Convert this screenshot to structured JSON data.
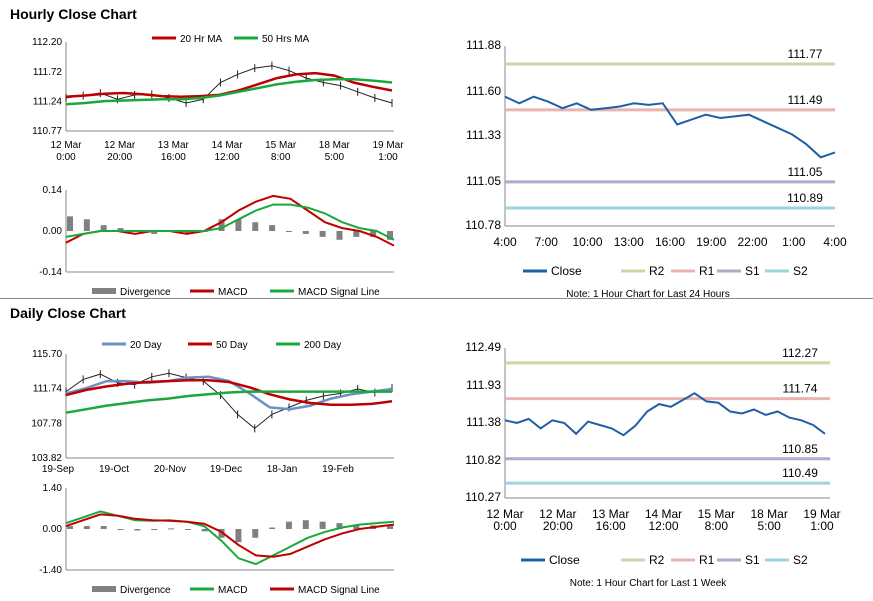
{
  "sections": {
    "hourly_title": "Hourly Close Chart",
    "daily_title": "Daily Close Chart"
  },
  "colors": {
    "close": "#1f5fa8",
    "r2": "#c5d9a0",
    "r1": "#e8b4b2",
    "s1": "#b3a7cc",
    "s2": "#9fd3e0",
    "ma_red": "#c00000",
    "ma_green": "#1aa83c",
    "ma_blue": "#6d8fc8",
    "divergence": "#808080"
  },
  "chart_data": [
    {
      "id": "hourly_price",
      "type": "line",
      "legend_position": "top",
      "x_labels": [
        "12 Mar\n0:00",
        "12 Mar\n20:00",
        "13 Mar\n16:00",
        "14 Mar\n12:00",
        "15 Mar\n8:00",
        "18 Mar\n5:00",
        "19 Mar\n1:00"
      ],
      "ylim": [
        110.77,
        112.2
      ],
      "yticks": [
        "112.20",
        "111.72",
        "111.24",
        "110.77"
      ],
      "series": [
        {
          "name": "20 Hr MA",
          "color": "#c00000",
          "values": [
            111.32,
            111.34,
            111.37,
            111.38,
            111.36,
            111.33,
            111.32,
            111.33,
            111.35,
            111.42,
            111.52,
            111.62,
            111.68,
            111.7,
            111.66,
            111.55,
            111.48,
            111.42
          ]
        },
        {
          "name": "50 Hrs MA",
          "color": "#1aa83c",
          "values": [
            111.2,
            111.22,
            111.25,
            111.26,
            111.27,
            111.28,
            111.28,
            111.3,
            111.34,
            111.4,
            111.46,
            111.52,
            111.56,
            111.59,
            111.6,
            111.6,
            111.58,
            111.55
          ]
        }
      ],
      "price": [
        111.3,
        111.34,
        111.38,
        111.28,
        111.35,
        111.36,
        111.3,
        111.22,
        111.28,
        111.55,
        111.68,
        111.78,
        111.82,
        111.74,
        111.62,
        111.55,
        111.5,
        111.4,
        111.3,
        111.22
      ]
    },
    {
      "id": "hourly_macd",
      "type": "line",
      "ylim": [
        -0.14,
        0.14
      ],
      "yticks": [
        "0.14",
        "0.00",
        "-0.14"
      ],
      "legend": [
        "Divergence",
        "MACD",
        "MACD Signal Line"
      ],
      "macd": [
        -0.04,
        -0.01,
        0.0,
        0.0,
        -0.01,
        0.0,
        0.0,
        -0.01,
        0.0,
        0.03,
        0.07,
        0.1,
        0.12,
        0.11,
        0.07,
        0.03,
        0.01,
        0.0,
        -0.02,
        -0.05
      ],
      "signal": [
        -0.02,
        -0.01,
        0.0,
        0.0,
        0.0,
        0.0,
        0.0,
        0.0,
        0.0,
        0.01,
        0.04,
        0.07,
        0.09,
        0.09,
        0.08,
        0.06,
        0.03,
        0.01,
        0.0,
        -0.03
      ],
      "divergence": [
        0.05,
        0.04,
        0.02,
        0.01,
        0.0,
        -0.01,
        0.0,
        -0.01,
        0.0,
        0.04,
        0.04,
        0.03,
        0.02,
        0.0,
        -0.01,
        -0.02,
        -0.03,
        -0.02,
        -0.02,
        -0.03
      ]
    },
    {
      "id": "hourly_close_24h",
      "type": "line",
      "xlim_labels": [
        "4:00",
        "7:00",
        "10:00",
        "13:00",
        "16:00",
        "19:00",
        "22:00",
        "1:00",
        "4:00"
      ],
      "ylim": [
        110.78,
        111.88
      ],
      "yticks": [
        "111.88",
        "111.60",
        "111.33",
        "111.05",
        "110.78"
      ],
      "close": [
        111.57,
        111.53,
        111.57,
        111.54,
        111.5,
        111.53,
        111.49,
        111.5,
        111.51,
        111.53,
        111.52,
        111.53,
        111.4,
        111.43,
        111.46,
        111.44,
        111.45,
        111.46,
        111.42,
        111.38,
        111.34,
        111.28,
        111.2,
        111.23
      ],
      "levels": [
        {
          "name": "R2",
          "value": 111.77,
          "label": "111.77"
        },
        {
          "name": "R1",
          "value": 111.49,
          "label": "111.49"
        },
        {
          "name": "S1",
          "value": 111.05,
          "label": "111.05"
        },
        {
          "name": "S2",
          "value": 110.89,
          "label": "110.89"
        }
      ],
      "legend": [
        "Close",
        "R2",
        "R1",
        "S1",
        "S2"
      ],
      "note": "Note: 1 Hour Chart for Last 24 Hours"
    },
    {
      "id": "daily_price",
      "type": "line",
      "x_labels": [
        "19-Sep",
        "19-Oct",
        "20-Nov",
        "19-Dec",
        "18-Jan",
        "19-Feb"
      ],
      "ylim": [
        103.82,
        115.7
      ],
      "yticks": [
        "115.70",
        "111.74",
        "107.78",
        "103.82"
      ],
      "series": [
        {
          "name": "20 Day",
          "color": "#6d8fc8",
          "values": [
            111.2,
            111.8,
            112.6,
            112.6,
            112.4,
            112.6,
            113.0,
            113.1,
            112.6,
            111.2,
            109.6,
            109.4,
            109.8,
            110.6,
            111.1,
            111.4,
            111.7
          ]
        },
        {
          "name": "50 Day",
          "color": "#c00000",
          "values": [
            111.0,
            111.6,
            112.0,
            112.3,
            112.5,
            112.6,
            112.7,
            112.7,
            112.5,
            111.9,
            111.1,
            110.5,
            110.1,
            109.9,
            109.9,
            110.0,
            110.3
          ]
        },
        {
          "name": "200 Day",
          "color": "#1aa83c",
          "values": [
            109.0,
            109.4,
            109.8,
            110.1,
            110.4,
            110.6,
            110.9,
            111.1,
            111.3,
            111.4,
            111.4,
            111.4,
            111.4,
            111.4,
            111.4,
            111.4,
            111.4
          ]
        }
      ],
      "price": [
        111.4,
        112.8,
        113.4,
        112.4,
        112.2,
        113.1,
        113.5,
        113.0,
        112.6,
        111.0,
        108.8,
        107.2,
        108.8,
        109.6,
        110.4,
        110.9,
        111.2,
        111.7,
        111.3,
        111.8
      ]
    },
    {
      "id": "daily_macd",
      "type": "line",
      "ylim": [
        -1.4,
        1.4
      ],
      "yticks": [
        "1.40",
        "0.00",
        "-1.40"
      ],
      "legend": [
        "Divergence",
        "MACD",
        "MACD Signal Line"
      ],
      "macd": [
        0.2,
        0.4,
        0.6,
        0.45,
        0.3,
        0.28,
        0.3,
        0.25,
        0.1,
        -0.4,
        -1.0,
        -1.2,
        -0.9,
        -0.6,
        -0.3,
        -0.1,
        0.05,
        0.15,
        0.2,
        0.25
      ],
      "signal": [
        0.1,
        0.3,
        0.5,
        0.45,
        0.35,
        0.3,
        0.28,
        0.25,
        0.18,
        -0.1,
        -0.55,
        -0.9,
        -0.95,
        -0.85,
        -0.6,
        -0.35,
        -0.15,
        0.0,
        0.08,
        0.15
      ],
      "divergence": [
        0.1,
        0.1,
        0.1,
        0.0,
        -0.05,
        -0.02,
        0.02,
        0.0,
        -0.08,
        -0.3,
        -0.45,
        -0.3,
        0.05,
        0.25,
        0.3,
        0.25,
        0.2,
        0.15,
        0.12,
        0.1
      ]
    },
    {
      "id": "hourly_close_1w",
      "type": "line",
      "x_labels": [
        "12 Mar\n0:00",
        "12 Mar\n20:00",
        "13 Mar\n16:00",
        "14 Mar\n12:00",
        "15 Mar\n8:00",
        "18 Mar\n5:00",
        "19 Mar\n1:00"
      ],
      "ylim": [
        110.27,
        112.49
      ],
      "yticks": [
        "112.49",
        "111.93",
        "111.38",
        "110.82",
        "110.27"
      ],
      "close": [
        111.42,
        111.38,
        111.44,
        111.3,
        111.42,
        111.38,
        111.22,
        111.4,
        111.35,
        111.3,
        111.2,
        111.34,
        111.55,
        111.66,
        111.62,
        111.72,
        111.82,
        111.7,
        111.68,
        111.55,
        111.52,
        111.58,
        111.5,
        111.55,
        111.46,
        111.42,
        111.35,
        111.22
      ],
      "levels": [
        {
          "name": "R2",
          "value": 112.27,
          "label": "112.27"
        },
        {
          "name": "R1",
          "value": 111.74,
          "label": "111.74"
        },
        {
          "name": "S1",
          "value": 110.85,
          "label": "110.85"
        },
        {
          "name": "S2",
          "value": 110.49,
          "label": "110.49"
        }
      ],
      "legend": [
        "Close",
        "R2",
        "R1",
        "S1",
        "S2"
      ],
      "note": "Note: 1 Hour Chart for Last 1 Week"
    }
  ]
}
